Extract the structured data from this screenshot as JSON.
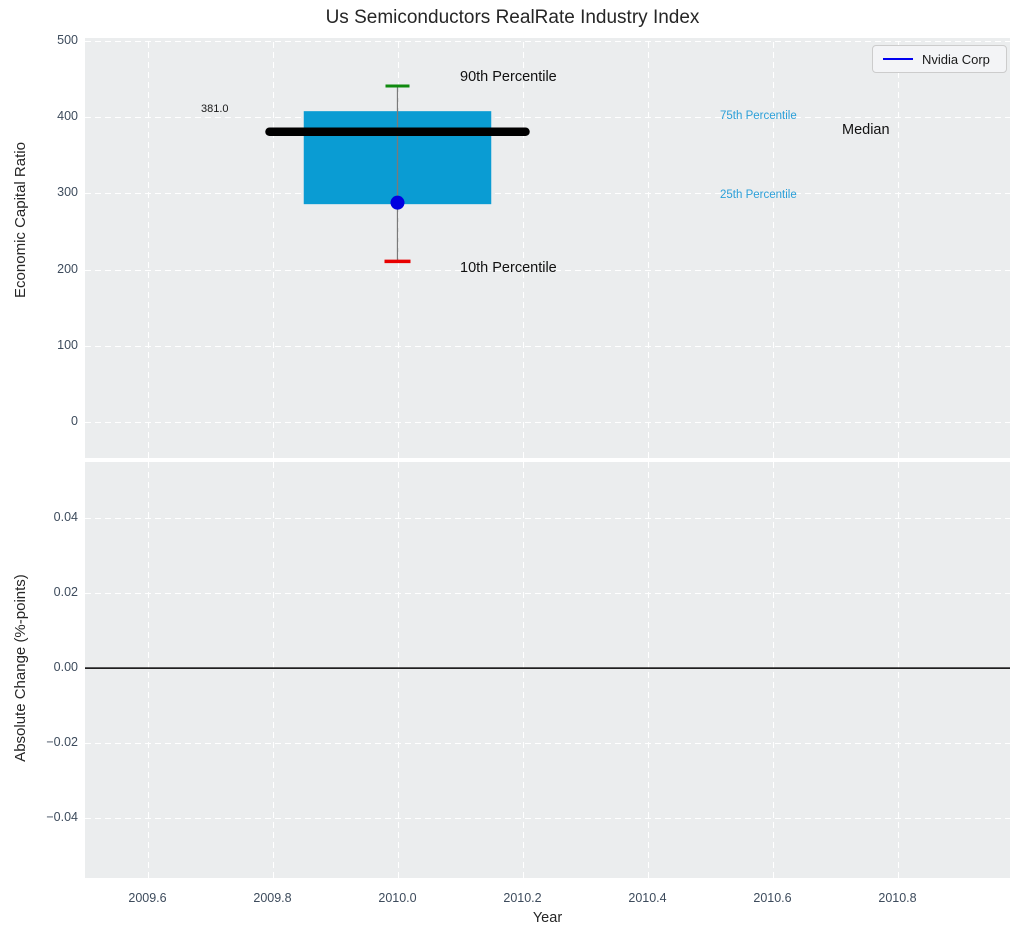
{
  "title": "Us Semiconductors RealRate Industry Index",
  "legend": {
    "label": "Nvidia Corp",
    "line_color": "#0000f0"
  },
  "top_chart": {
    "ylabel": "Economic Capital Ratio",
    "yticks": [
      "500",
      "400",
      "300",
      "200",
      "100",
      "0"
    ],
    "ytick_values": [
      500,
      400,
      300,
      200,
      100,
      0
    ],
    "annotations": {
      "median_value_label": "381.0",
      "p90_label": "90th Percentile",
      "p10_label": "10th Percentile",
      "p75_label": "75th Percentile",
      "p25_label": "25th Percentile",
      "median_label": "Median",
      "percentile_label_color": "#2b9fd8"
    }
  },
  "bottom_chart": {
    "ylabel": "Absolute Change (%-points)",
    "yticks": [
      "0.04",
      "0.02",
      "0.00",
      "−0.02",
      "−0.04"
    ],
    "ytick_values": [
      0.04,
      0.02,
      0,
      -0.02,
      -0.04
    ]
  },
  "x_axis": {
    "label": "Year",
    "ticks": [
      "2009.6",
      "2009.8",
      "2010.0",
      "2010.2",
      "2010.4",
      "2010.6",
      "2010.8"
    ],
    "tick_values": [
      2009.6,
      2009.8,
      2010.0,
      2010.2,
      2010.4,
      2010.6,
      2010.8
    ]
  },
  "chart_data": [
    {
      "type": "boxplot",
      "title": "Us Semiconductors RealRate Industry Index",
      "xlabel": "Year",
      "ylabel": "Economic Capital Ratio",
      "x": 2010.0,
      "median": 381.0,
      "q75": 408,
      "q25": 286,
      "p90": 441,
      "p10": 211,
      "company_point": {
        "name": "Nvidia Corp",
        "value": 288,
        "color": "#0000e0"
      },
      "box_color": "#0a9cd3",
      "median_color": "#000000",
      "whisker_color": "#7a7a7a",
      "p90_cap_color": "#0f8a0f",
      "p10_cap_color": "#e80000",
      "box_width_years": 0.3,
      "xlim": [
        2009.5,
        2010.98
      ],
      "ylim": [
        -47,
        504
      ],
      "grid": true,
      "legend_position": "upper right"
    },
    {
      "type": "line",
      "ylabel": "Absolute Change (%-points)",
      "xlabel": "Year",
      "series": [],
      "zero_line": 0.0,
      "xlim": [
        2009.5,
        2010.98
      ],
      "ylim": [
        -0.056,
        0.055
      ],
      "grid": true
    }
  ]
}
